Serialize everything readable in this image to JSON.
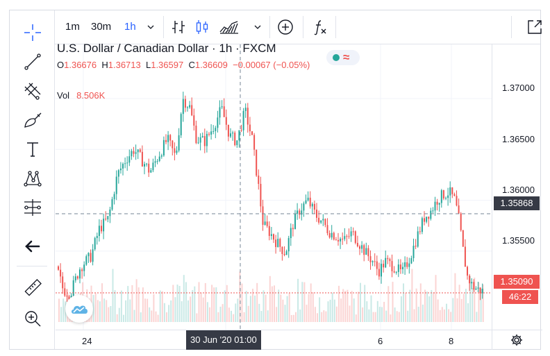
{
  "toolbar": {
    "timeframes": [
      "1m",
      "30m",
      "1h"
    ],
    "active_timeframe": "1h"
  },
  "left_tools": [
    "crosshair-icon",
    "trend-line-icon",
    "fib-icon",
    "brush-icon",
    "text-icon",
    "pattern-icon",
    "measure-lines-icon",
    "back-arrow-icon",
    "ruler-icon",
    "zoom-in-icon"
  ],
  "legend": {
    "title": "U.S. Dollar / Canadian Dollar · 1h · FXCM",
    "o_label": "O",
    "o": "1.36676",
    "h_label": "H",
    "h": "1.36713",
    "l_label": "L",
    "l": "1.36597",
    "c_label": "C",
    "c": "1.36609",
    "change": "−0.00067 (−0.05%)",
    "vol_label": "Vol",
    "vol": "8.506K"
  },
  "price_axis": {
    "ticks": [
      "1.37000",
      "1.36500",
      "1.36000",
      "1.35500"
    ],
    "crosshair_price": "1.35868",
    "last_price": "1.35090",
    "countdown": "46:22"
  },
  "time_axis": {
    "ticks": [
      "24",
      "6",
      "8"
    ],
    "crosshair_time": "30 Jun '20   01:00"
  },
  "colors": {
    "up": "#26a69a",
    "down": "#ef5350",
    "accent": "#2962ff",
    "crosshair_bg": "#363a45"
  },
  "chart_data": {
    "type": "candlestick",
    "symbol": "USDCAD",
    "interval": "1h",
    "ylim": [
      1.346,
      1.3745
    ],
    "y_ticks": [
      1.37,
      1.365,
      1.36,
      1.355
    ],
    "crosshair_price": 1.35868,
    "last_price": 1.3509,
    "x_ticks": [
      "24",
      "30 Jun '20 01:00",
      "6",
      "8"
    ]
  }
}
